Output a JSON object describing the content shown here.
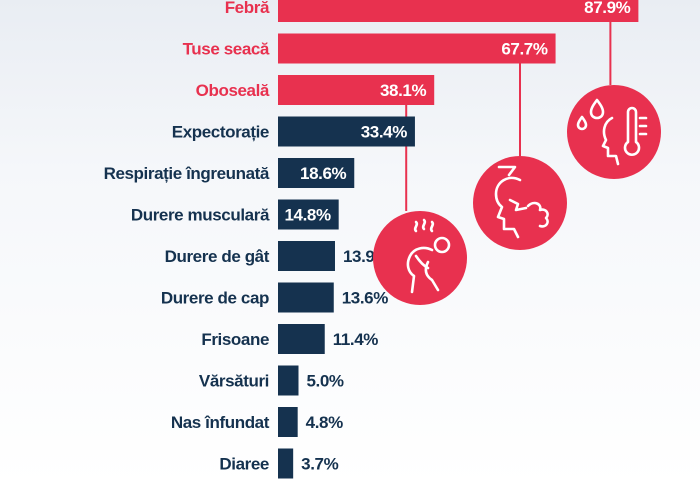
{
  "colors": {
    "highlight": "#e8314f",
    "base": "#15324f",
    "label_on_bar": "#ffffff",
    "label_off_bar": "#15324f"
  },
  "chart_data": {
    "type": "bar",
    "orientation": "horizontal",
    "title": "",
    "xlabel": "",
    "ylabel": "",
    "xlim": [
      0,
      100
    ],
    "unit": "%",
    "categories": [
      "Febră",
      "Tuse seacă",
      "Oboseală",
      "Expectorație",
      "Respirație îngreunată",
      "Durere musculară",
      "Durere de gât",
      "Durere de cap",
      "Frisoane",
      "Vărsături",
      "Nas înfundat",
      "Diaree"
    ],
    "values": [
      87.9,
      67.7,
      38.1,
      33.4,
      18.6,
      14.8,
      13.9,
      13.6,
      11.4,
      5.0,
      4.8,
      3.7
    ],
    "value_labels": [
      "87.9%",
      "67.7%",
      "38.1%",
      "33.4%",
      "18.6%",
      "14.8%",
      "13.9%",
      "13.6%",
      "11.4%",
      "5.0%",
      "4.8%",
      "3.7%"
    ],
    "highlighted": [
      true,
      true,
      true,
      false,
      false,
      false,
      false,
      false,
      false,
      false,
      false,
      false
    ],
    "icons": [
      {
        "name": "fever-thermometer-icon",
        "linked_category": "Febră"
      },
      {
        "name": "dry-cough-icon",
        "linked_category": "Tuse seacă"
      },
      {
        "name": "fatigue-icon",
        "linked_category": "Oboseală"
      }
    ]
  }
}
